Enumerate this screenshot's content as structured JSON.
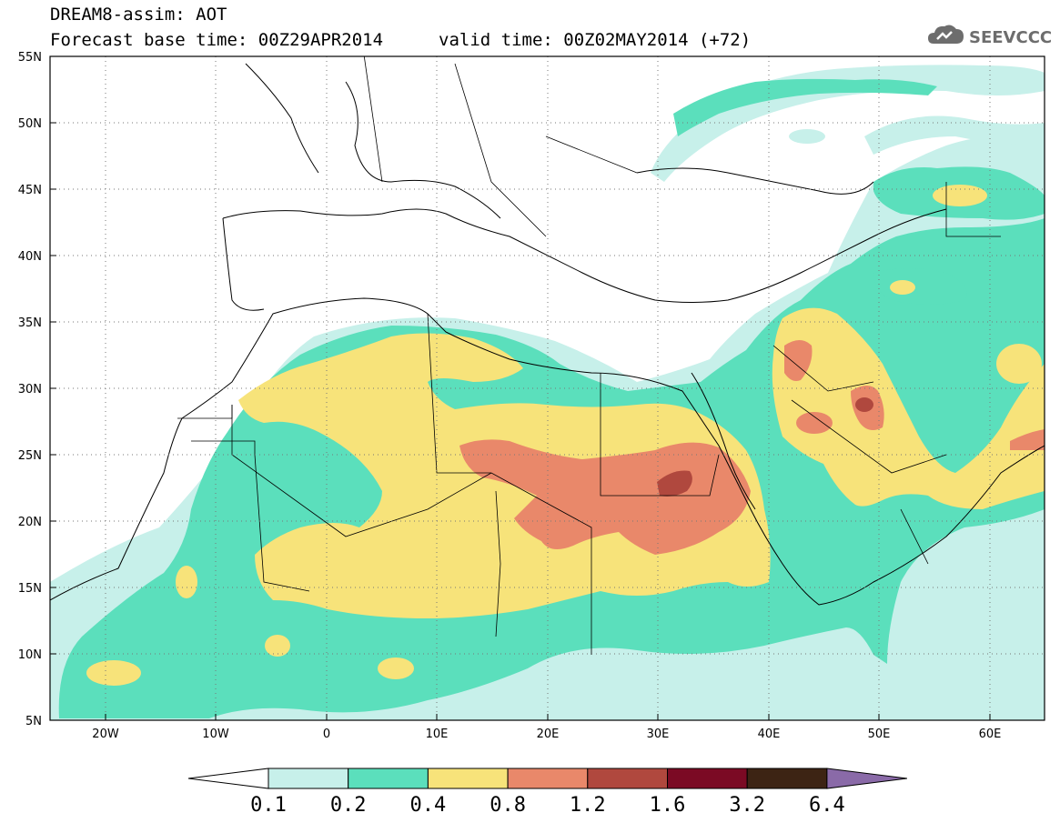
{
  "header": {
    "title": "DREAM8-assim: AOT",
    "base_time": "Forecast base time: 00Z29APR2014",
    "valid_time": "valid time: 00Z02MAY2014 (+72)"
  },
  "logo": {
    "text": "SEEVCCC",
    "icon": "cloud-logo-icon"
  },
  "map": {
    "lat_labels": [
      "55N",
      "50N",
      "45N",
      "40N",
      "35N",
      "30N",
      "25N",
      "20N",
      "15N",
      "10N",
      "5N"
    ],
    "lon_labels": [
      "20W",
      "10W",
      "0",
      "10E",
      "20E",
      "30E",
      "40E",
      "50E",
      "60E"
    ],
    "lon_range": [
      -25,
      65
    ],
    "lat_range": [
      5,
      55
    ],
    "grid": "dotted"
  },
  "colorbar": {
    "levels": [
      "0.1",
      "0.2",
      "0.4",
      "0.8",
      "1.2",
      "1.6",
      "3.2",
      "6.4"
    ],
    "colors": [
      "#ffffff",
      "#c7f0ea",
      "#5bdfbc",
      "#f7e37a",
      "#e9886a",
      "#b0483e",
      "#7b0a24",
      "#3d2414",
      "#8a6aa8"
    ]
  }
}
